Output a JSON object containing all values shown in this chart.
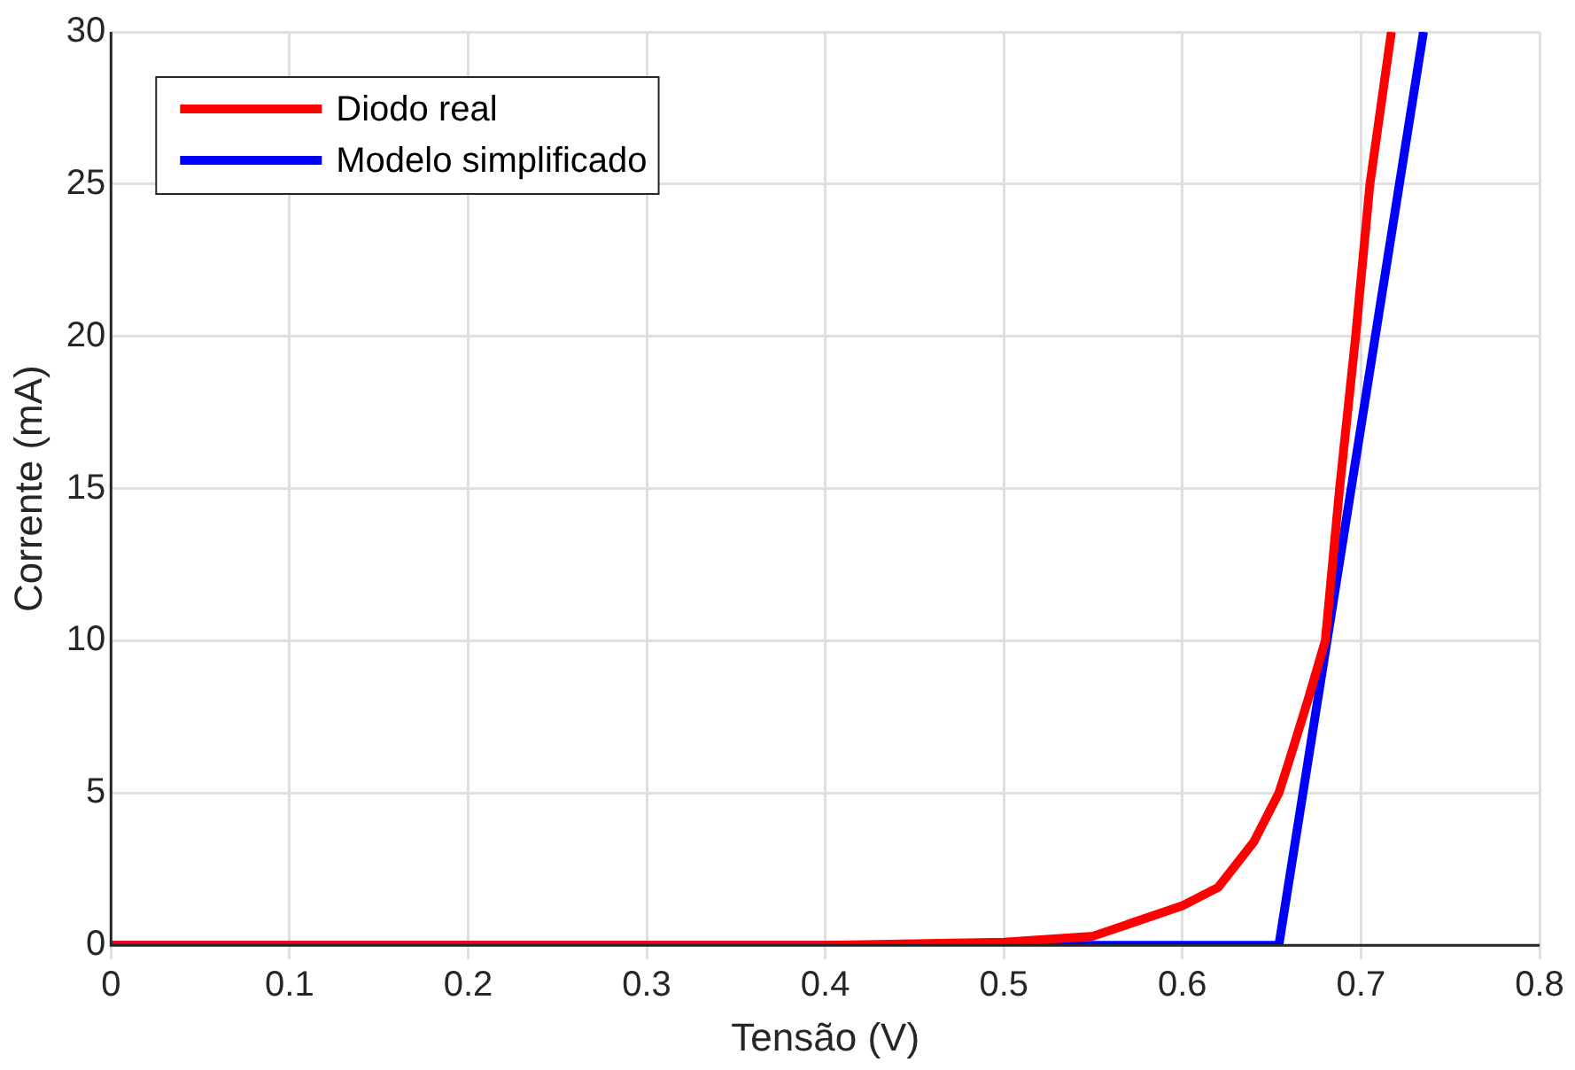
{
  "chart_data": {
    "type": "line",
    "xlabel": "Tensão (V)",
    "ylabel": "Corrente (mA)",
    "xlim": [
      0,
      0.8
    ],
    "xticks": [
      0,
      0.1,
      0.2,
      0.3,
      0.4,
      0.5,
      0.6,
      0.7,
      0.8
    ],
    "ylim": [
      0,
      30
    ],
    "yticks": [
      0,
      5,
      10,
      15,
      20,
      25,
      30
    ],
    "grid": true,
    "legend": "top left",
    "marker": "none",
    "line_style": "solid",
    "series": [
      {
        "name": "Diodo real",
        "color": "#ff0000",
        "x": [
          0,
          0.1,
          0.2,
          0.3,
          0.4,
          0.45,
          0.5,
          0.55,
          0.6,
          0.62,
          0.64,
          0.654,
          0.66,
          0.67,
          0.68,
          0.688,
          0.697,
          0.705,
          0.717
        ],
        "values": [
          0,
          0,
          0,
          0,
          0,
          0.05,
          0.1,
          0.3,
          1.3,
          1.9,
          3.4,
          5,
          6.1,
          8,
          10,
          15,
          20,
          25,
          30
        ]
      },
      {
        "name": "Modelo simplificado",
        "color": "#0000ff",
        "x": [
          0,
          0.654,
          0.735
        ],
        "values": [
          0,
          0,
          30
        ]
      }
    ]
  }
}
